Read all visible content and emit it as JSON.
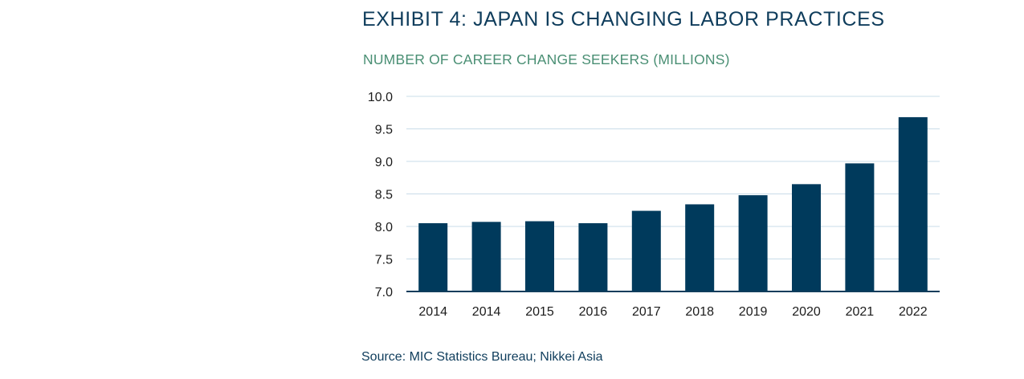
{
  "title": "EXHIBIT 4: JAPAN IS CHANGING LABOR PRACTICES",
  "source": "Source: MIC Statistics Bureau; Nikkei Asia",
  "colors": {
    "title": "#0f3d5c",
    "subtitle": "#4a8f74",
    "bar": "#003a5c",
    "grid": "#c9dce8",
    "axis": "#0f3d5c"
  },
  "chart_data": {
    "type": "bar",
    "title": "NUMBER OF CAREER CHANGE SEEKERS (MILLIONS)",
    "xlabel": "",
    "ylabel": "",
    "categories": [
      "2014",
      "2014",
      "2015",
      "2016",
      "2017",
      "2018",
      "2019",
      "2020",
      "2021",
      "2022"
    ],
    "values": [
      8.05,
      8.07,
      8.08,
      8.05,
      8.24,
      8.34,
      8.48,
      8.65,
      8.97,
      9.68
    ],
    "ylim": [
      7.0,
      10.0
    ],
    "yticks": [
      "7.0",
      "7.5",
      "8.0",
      "8.5",
      "9.0",
      "9.5",
      "10.0"
    ],
    "grid": true,
    "legend": "none"
  }
}
